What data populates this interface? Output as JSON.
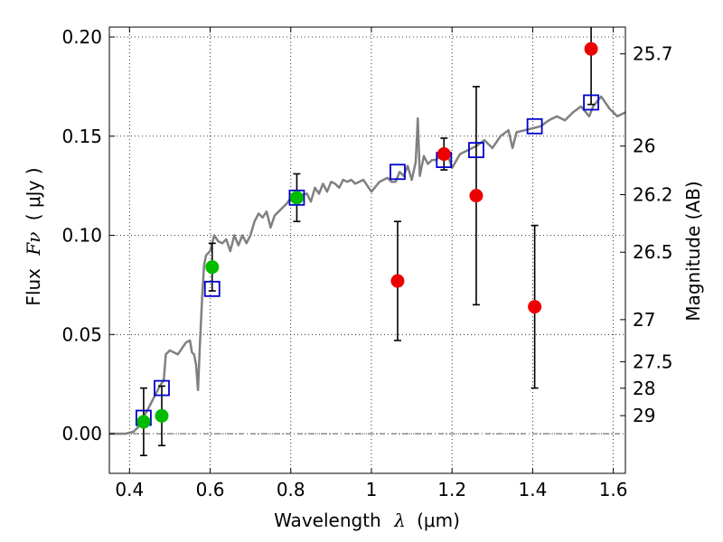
{
  "chart_data": {
    "type": "scatter",
    "title": "",
    "xlabel_text": "Wavelength",
    "xlabel_symbol": "λ",
    "xlabel_unit": "(μm)",
    "ylabel_text": "Flux",
    "ylabel_symbol": "Fν",
    "ylabel_unit": "( μJy )",
    "y2label": "Magnitude (AB)",
    "xlim": [
      0.35,
      1.63
    ],
    "ylim": [
      -0.02,
      0.205
    ],
    "grid": true,
    "x_ticks": [
      0.4,
      0.6,
      0.8,
      1.0,
      1.2,
      1.4,
      1.6
    ],
    "x_tick_labels": [
      "0.4",
      "0.6",
      "0.8",
      "1",
      "1.2",
      "1.4",
      "1.6"
    ],
    "y_ticks": [
      0.0,
      0.05,
      0.1,
      0.15,
      0.2
    ],
    "y_tick_labels": [
      "0.00",
      "0.05",
      "0.10",
      "0.15",
      "0.20"
    ],
    "y2_ticks": [
      {
        "label": "25.7",
        "flux": 0.1915
      },
      {
        "label": "26",
        "flux": 0.145
      },
      {
        "label": "26.2",
        "flux": 0.1205
      },
      {
        "label": "26.5",
        "flux": 0.0915
      },
      {
        "label": "27",
        "flux": 0.0575
      },
      {
        "label": "27.5",
        "flux": 0.0363
      },
      {
        "label": "28",
        "flux": 0.0229
      },
      {
        "label": "29",
        "flux": 0.0091
      }
    ],
    "series": [
      {
        "name": "model SED",
        "kind": "line",
        "color": "#808080",
        "x": [
          0.35,
          0.39,
          0.41,
          0.42,
          0.43,
          0.445,
          0.455,
          0.465,
          0.475,
          0.485,
          0.49,
          0.5,
          0.51,
          0.52,
          0.53,
          0.54,
          0.55,
          0.555,
          0.56,
          0.565,
          0.57,
          0.575,
          0.58,
          0.585,
          0.59,
          0.6,
          0.61,
          0.62,
          0.63,
          0.64,
          0.65,
          0.66,
          0.67,
          0.68,
          0.69,
          0.7,
          0.71,
          0.72,
          0.73,
          0.74,
          0.75,
          0.76,
          0.77,
          0.78,
          0.79,
          0.8,
          0.82,
          0.84,
          0.85,
          0.86,
          0.87,
          0.88,
          0.89,
          0.9,
          0.91,
          0.92,
          0.93,
          0.94,
          0.95,
          0.96,
          0.98,
          1.0,
          1.02,
          1.04,
          1.05,
          1.06,
          1.07,
          1.08,
          1.09,
          1.1,
          1.11,
          1.115,
          1.12,
          1.13,
          1.14,
          1.15,
          1.16,
          1.17,
          1.18,
          1.19,
          1.2,
          1.22,
          1.24,
          1.26,
          1.28,
          1.3,
          1.32,
          1.34,
          1.35,
          1.36,
          1.38,
          1.4,
          1.42,
          1.44,
          1.46,
          1.48,
          1.5,
          1.52,
          1.54,
          1.55,
          1.57,
          1.59,
          1.61,
          1.63
        ],
        "y": [
          0.0,
          0.0,
          0.001,
          0.003,
          0.007,
          0.012,
          0.016,
          0.02,
          0.024,
          0.027,
          0.04,
          0.042,
          0.041,
          0.04,
          0.043,
          0.046,
          0.047,
          0.041,
          0.04,
          0.035,
          0.022,
          0.047,
          0.068,
          0.085,
          0.09,
          0.092,
          0.1,
          0.097,
          0.096,
          0.098,
          0.092,
          0.1,
          0.095,
          0.1,
          0.096,
          0.1,
          0.107,
          0.111,
          0.109,
          0.112,
          0.104,
          0.11,
          0.112,
          0.114,
          0.116,
          0.119,
          0.12,
          0.121,
          0.117,
          0.124,
          0.121,
          0.126,
          0.122,
          0.127,
          0.126,
          0.124,
          0.128,
          0.127,
          0.128,
          0.126,
          0.128,
          0.122,
          0.127,
          0.129,
          0.127,
          0.127,
          0.132,
          0.13,
          0.135,
          0.128,
          0.137,
          0.159,
          0.13,
          0.14,
          0.136,
          0.138,
          0.138,
          0.14,
          0.14,
          0.14,
          0.134,
          0.141,
          0.143,
          0.145,
          0.148,
          0.144,
          0.15,
          0.153,
          0.144,
          0.152,
          0.153,
          0.154,
          0.155,
          0.158,
          0.16,
          0.158,
          0.162,
          0.165,
          0.16,
          0.165,
          0.17,
          0.164,
          0.16,
          0.162
        ]
      },
      {
        "name": "synthetic photometry",
        "kind": "marker",
        "marker": "open-square",
        "color": "#0000cc",
        "x": [
          0.435,
          0.48,
          0.605,
          0.815,
          1.065,
          1.18,
          1.26,
          1.405,
          1.545
        ],
        "y": [
          0.008,
          0.023,
          0.073,
          0.119,
          0.132,
          0.138,
          0.143,
          0.155,
          0.167
        ]
      },
      {
        "name": "observed (green)",
        "kind": "marker",
        "marker": "filled-circle",
        "color": "#00bb00",
        "x": [
          0.435,
          0.48,
          0.605,
          0.815
        ],
        "y": [
          0.006,
          0.009,
          0.084,
          0.119
        ],
        "err": [
          0.017,
          0.015,
          0.012,
          0.012
        ]
      },
      {
        "name": "observed (red)",
        "kind": "marker",
        "marker": "filled-circle",
        "color": "#ee0000",
        "x": [
          1.065,
          1.18,
          1.26,
          1.405,
          1.545
        ],
        "y": [
          0.077,
          0.141,
          0.12,
          0.064,
          0.194
        ],
        "err": [
          0.03,
          0.008,
          0.055,
          0.041,
          0.028
        ]
      }
    ]
  }
}
